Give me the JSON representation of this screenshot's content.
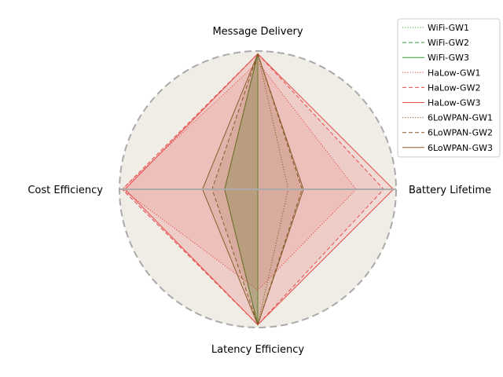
{
  "chart_data": {
    "type": "radar",
    "axes": [
      "Message Delivery",
      "Battery Lifetime",
      "Latency Efficiency",
      "Cost Efficiency"
    ],
    "rmax": 1.0,
    "grid": false,
    "legend_position": "top-right",
    "background_color": "#f0ece6",
    "outer_ring_color": "#aaaaaa",
    "series": [
      {
        "name": "WiFi-GW1",
        "color": "#2ca02c",
        "linestyle": "dotted",
        "values": [
          0.98,
          0.0,
          0.98,
          0.24
        ],
        "fill": true
      },
      {
        "name": "WiFi-GW2",
        "color": "#2ca02c",
        "linestyle": "dashed",
        "values": [
          0.98,
          0.0,
          0.98,
          0.24
        ],
        "fill": true
      },
      {
        "name": "WiFi-GW3",
        "color": "#2ca02c",
        "linestyle": "solid",
        "values": [
          0.98,
          0.0,
          0.98,
          0.24
        ],
        "fill": true
      },
      {
        "name": "HaLow-GW1",
        "color": "#e74c4c",
        "linestyle": "dotted",
        "values": [
          0.92,
          0.71,
          0.73,
          0.98
        ],
        "fill": true
      },
      {
        "name": "HaLow-GW2",
        "color": "#e74c4c",
        "linestyle": "dashed",
        "values": [
          0.98,
          0.91,
          0.98,
          0.98
        ],
        "fill": true
      },
      {
        "name": "HaLow-GW3",
        "color": "#e74c4c",
        "linestyle": "solid",
        "values": [
          0.98,
          0.98,
          0.98,
          0.96
        ],
        "fill": true
      },
      {
        "name": "6LoWPAN-GW1",
        "color": "#8b5a2b",
        "linestyle": "dotted",
        "values": [
          0.98,
          0.22,
          0.98,
          0.24
        ],
        "fill": false
      },
      {
        "name": "6LoWPAN-GW2",
        "color": "#8b5a2b",
        "linestyle": "dashed",
        "values": [
          0.98,
          0.32,
          0.98,
          0.33
        ],
        "fill": true
      },
      {
        "name": "6LoWPAN-GW3",
        "color": "#8b5a2b",
        "linestyle": "solid",
        "values": [
          0.98,
          0.33,
          0.98,
          0.4
        ],
        "fill": true
      }
    ]
  }
}
